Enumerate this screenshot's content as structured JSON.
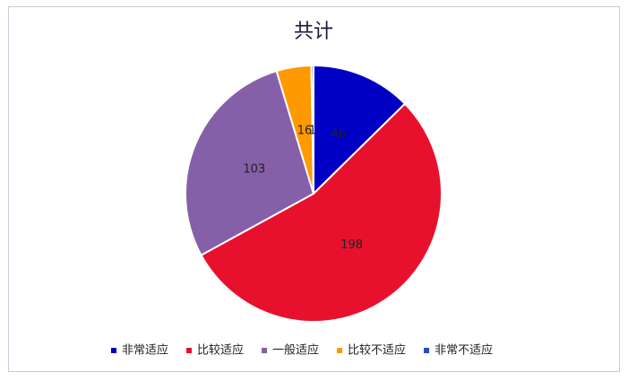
{
  "chart_data": {
    "type": "pie",
    "title": "共计",
    "categories": [
      "非常适应",
      "比较适应",
      "一般适应",
      "比较不适应",
      "非常不适应"
    ],
    "values": [
      46,
      198,
      103,
      16,
      1
    ],
    "colors": [
      "#0000c4",
      "#e8112d",
      "#8560a8",
      "#ff9900",
      "#1f4fbf"
    ],
    "legend": "bottom"
  }
}
